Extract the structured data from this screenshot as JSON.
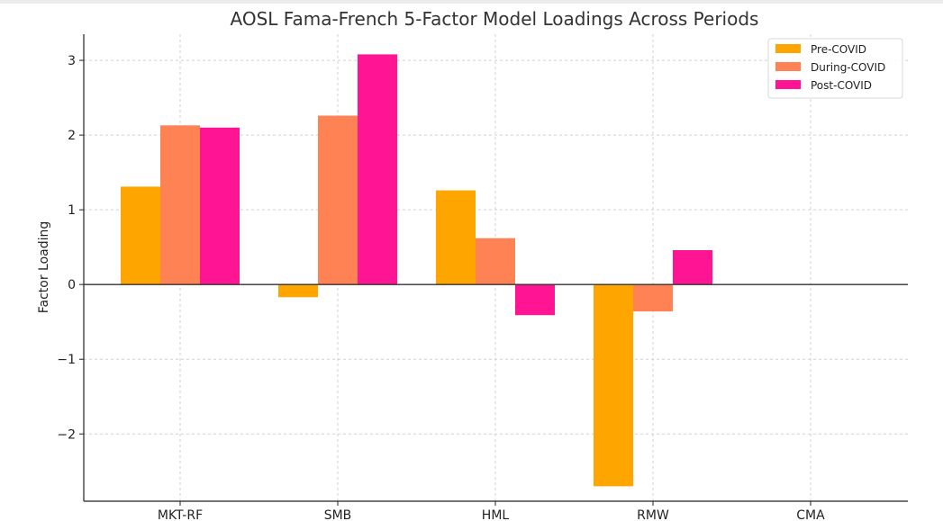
{
  "chart_data": {
    "type": "bar",
    "title": "AOSL Fama-French 5-Factor Model Loadings Across Periods",
    "xlabel": "",
    "ylabel": "Factor Loading",
    "categories": [
      "MKT-RF",
      "SMB",
      "HML",
      "RMW",
      "CMA"
    ],
    "series": [
      {
        "name": "Pre-COVID",
        "color": "#FFA500",
        "values": [
          1.31,
          -0.17,
          1.26,
          -2.7,
          0.0
        ]
      },
      {
        "name": "During-COVID",
        "color": "#FF8254",
        "values": [
          2.13,
          2.26,
          0.62,
          -0.36,
          0.0
        ]
      },
      {
        "name": "Post-COVID",
        "color": "#FF1493",
        "values": [
          2.1,
          3.08,
          -0.41,
          0.46,
          0.0
        ]
      }
    ],
    "yticks": [
      -2,
      -1,
      0,
      1,
      2,
      3
    ],
    "ytick_labels": [
      "−2",
      "−1",
      "0",
      "1",
      "2",
      "3"
    ],
    "ylim": [
      -2.9,
      3.35
    ],
    "grid": true,
    "legend_position": "top-right"
  }
}
